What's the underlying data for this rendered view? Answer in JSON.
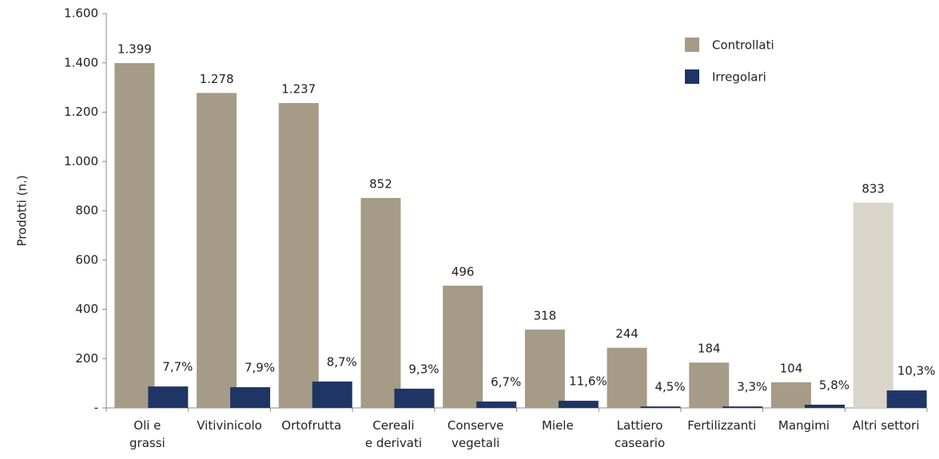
{
  "chart_data": {
    "type": "bar",
    "y_axis_label": "Prodotti (n.)",
    "categories": [
      [
        "Oli e",
        "grassi"
      ],
      [
        "Vitivinicolo"
      ],
      [
        "Ortofrutta"
      ],
      [
        "Cereali",
        "e derivati"
      ],
      [
        "Conserve",
        "vegetali"
      ],
      [
        "Miele"
      ],
      [
        "Lattiero",
        "caseario"
      ],
      [
        "Fertilizzanti"
      ],
      [
        "Mangimi"
      ],
      [
        "Altri settori"
      ]
    ],
    "series": [
      {
        "name": "Controllati",
        "color": "#a59b86",
        "colors": [
          "#a59b86",
          "#a59b86",
          "#a59b86",
          "#a59b86",
          "#a59b86",
          "#a59b86",
          "#a59b86",
          "#a59b86",
          "#a59b86",
          "#d9d5ca"
        ],
        "values": [
          1399,
          1278,
          1237,
          852,
          496,
          318,
          244,
          184,
          104,
          833
        ],
        "value_labels": [
          "1.399",
          "1.278",
          "1.237",
          "852",
          "496",
          "318",
          "244",
          "184",
          "104",
          "833"
        ]
      },
      {
        "name": "Irregolari",
        "color": "#1f3566",
        "values": [
          87,
          84,
          107,
          78,
          26,
          29,
          6,
          6,
          13,
          71
        ],
        "shares": [
          7.7,
          7.9,
          8.7,
          9.3,
          6.7,
          11.6,
          4.5,
          3.3,
          5.8,
          10.3
        ],
        "share_labels": [
          "7,7%",
          "7,9%",
          "8,7%",
          "9,3%",
          "6,7%",
          "11,6%",
          "4,5%",
          "3,3%",
          "5,8%",
          "10,3%"
        ]
      }
    ],
    "ylim": [
      0,
      1600
    ],
    "yticks": [
      {
        "value": 0,
        "label": "-"
      },
      200,
      400,
      600,
      800,
      {
        "value": 1000,
        "label": "1.000"
      },
      {
        "value": 1200,
        "label": "1.200"
      },
      {
        "value": 1400,
        "label": "1.400"
      },
      {
        "value": 1600,
        "label": "1.600"
      }
    ],
    "legend": "top-right"
  }
}
